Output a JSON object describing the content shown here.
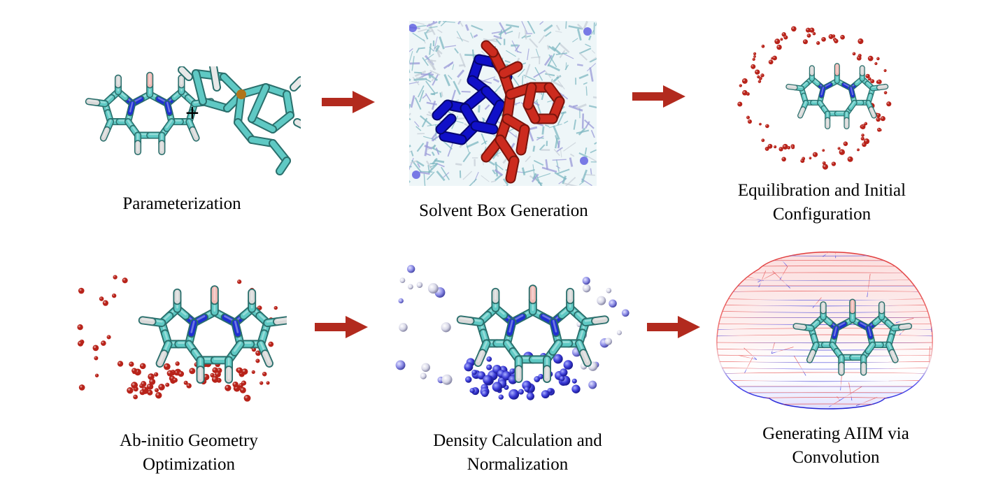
{
  "steps": [
    {
      "id": "parameterization",
      "caption_lines": [
        "Parameterization"
      ]
    },
    {
      "id": "solvent-box",
      "caption_lines": [
        "Solvent Box Generation"
      ]
    },
    {
      "id": "equilibration",
      "caption_lines": [
        "Equilibration and Initial",
        "Configuration"
      ]
    },
    {
      "id": "ab-initio",
      "caption_lines": [
        "Ab-initio Geometry",
        "Optimization"
      ]
    },
    {
      "id": "density",
      "caption_lines": [
        "Density Calculation and",
        "Normalization"
      ]
    },
    {
      "id": "aiim",
      "caption_lines": [
        "Generating AIIM via",
        "Convolution"
      ]
    }
  ],
  "plus_sign": "+",
  "colors": {
    "arrow": "#b22a1e",
    "carbon": "#5fc9c4",
    "nitrogen": "#1f2fd1",
    "hydrogen": "#ffffff",
    "boron": "#f0b9b4",
    "red_atom": "#b8231a",
    "blue_atom": "#3a3ad6",
    "white_atom": "#e6e6f0",
    "solute_blue": "#1010c8",
    "solute_red": "#cc2b1e"
  },
  "icons": [
    "molecule-icon",
    "solvent-box-icon",
    "point-cloud-icon",
    "mesh-surface-icon",
    "right-arrow-icon"
  ]
}
